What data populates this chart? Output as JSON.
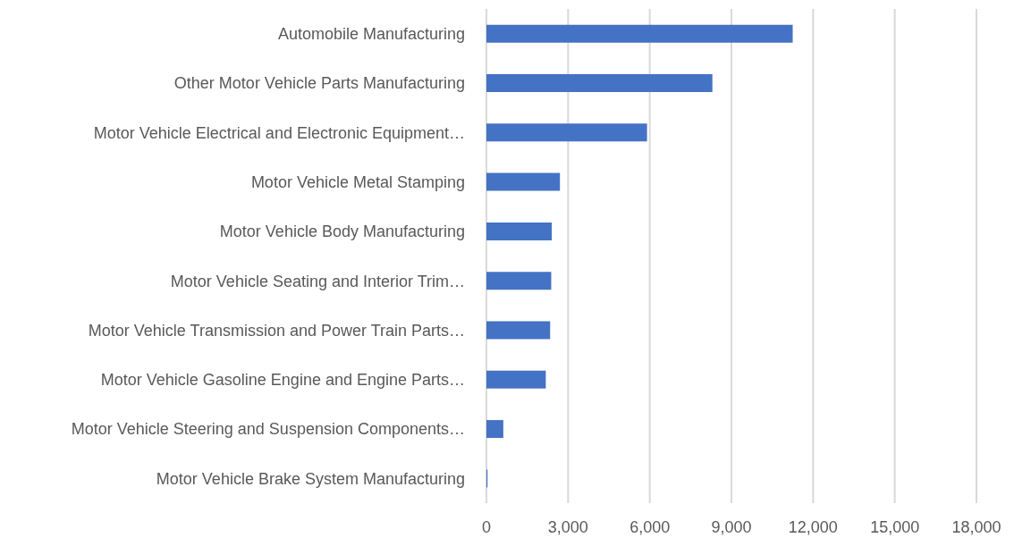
{
  "chart_data": {
    "type": "bar",
    "orientation": "horizontal",
    "categories": [
      "Automobile Manufacturing",
      "Other Motor Vehicle Parts Manufacturing",
      "Motor Vehicle Electrical and Electronic Equipment…",
      "Motor Vehicle Metal Stamping",
      "Motor Vehicle Body Manufacturing",
      "Motor Vehicle Seating and Interior Trim…",
      "Motor Vehicle Transmission and Power Train Parts…",
      "Motor Vehicle Gasoline Engine and Engine Parts…",
      "Motor Vehicle Steering and Suspension Components…",
      "Motor Vehicle Brake System Manufacturing"
    ],
    "values": [
      11250,
      8300,
      5900,
      2700,
      2400,
      2380,
      2340,
      2180,
      620,
      40
    ],
    "color": "#4472c4",
    "xlim": [
      0,
      18000
    ],
    "xticks": [
      {
        "value": 0,
        "label": "0"
      },
      {
        "value": 3000,
        "label": "3,000"
      },
      {
        "value": 6000,
        "label": "6,000"
      },
      {
        "value": 9000,
        "label": "9,000"
      },
      {
        "value": 12000,
        "label": "12,000"
      },
      {
        "value": 15000,
        "label": "15,000"
      },
      {
        "value": 18000,
        "label": "18,000"
      }
    ],
    "grid": "x"
  }
}
